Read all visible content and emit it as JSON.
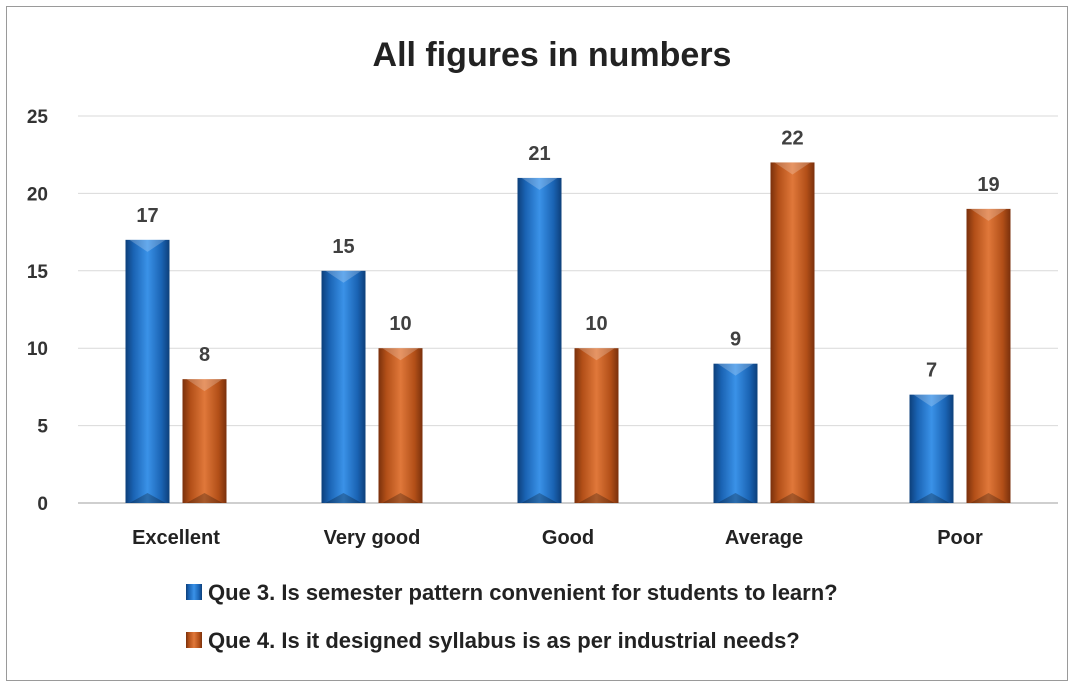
{
  "chart_data": {
    "type": "bar",
    "title": "All figures in numbers",
    "categories": [
      "Excellent",
      "Very good",
      "Good",
      "Average",
      "Poor"
    ],
    "series": [
      {
        "name": "Que 3. Is semester pattern convenient for students to learn?",
        "values": [
          17,
          15,
          21,
          9,
          7
        ],
        "color": "#1f6fc5"
      },
      {
        "name": "Que 4. Is it designed syllabus is as per industrial needs?",
        "values": [
          8,
          10,
          10,
          22,
          19
        ],
        "color": "#c65a1e"
      }
    ],
    "yticks": [
      0,
      5,
      10,
      15,
      20,
      25
    ],
    "ylim": [
      0,
      25
    ],
    "grid": true,
    "legend_position": "bottom",
    "xlabel": "",
    "ylabel": ""
  }
}
